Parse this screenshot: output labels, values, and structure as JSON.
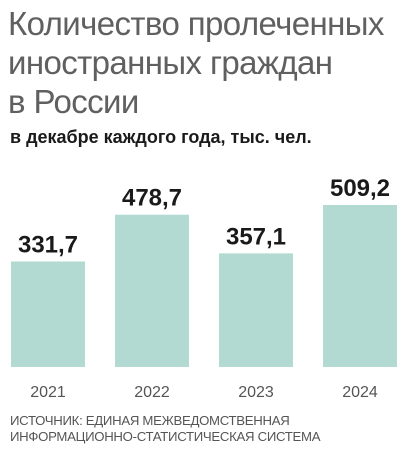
{
  "title_lines": [
    "Количество пролеченных",
    "иностранных граждан",
    "в России"
  ],
  "subtitle": "в декабре каждого года, тыс. чел.",
  "source_lines": [
    "ИСТОЧНИК: ЕДИНАЯ МЕЖВЕДОМСТВЕННАЯ",
    "ИНФОРМАЦИОННО-СТАТИСТИЧЕСКАЯ СИСТЕМА"
  ],
  "colors": {
    "bar": "#b3d9d3",
    "value_text": "#1a1a1a",
    "axis_text": "#555555"
  },
  "chart_data": {
    "type": "bar",
    "categories": [
      "2021",
      "2022",
      "2023",
      "2024"
    ],
    "values": [
      331.7,
      478.7,
      357.1,
      509.2
    ],
    "value_labels": [
      "331,7",
      "478,7",
      "357,1",
      "509,2"
    ],
    "title": "Количество пролеченных иностранных граждан в России",
    "subtitle": "в декабре каждого года, тыс. чел.",
    "xlabel": "",
    "ylabel": "",
    "ylim": [
      0,
      509.2
    ],
    "grid": false,
    "legend": "none"
  }
}
